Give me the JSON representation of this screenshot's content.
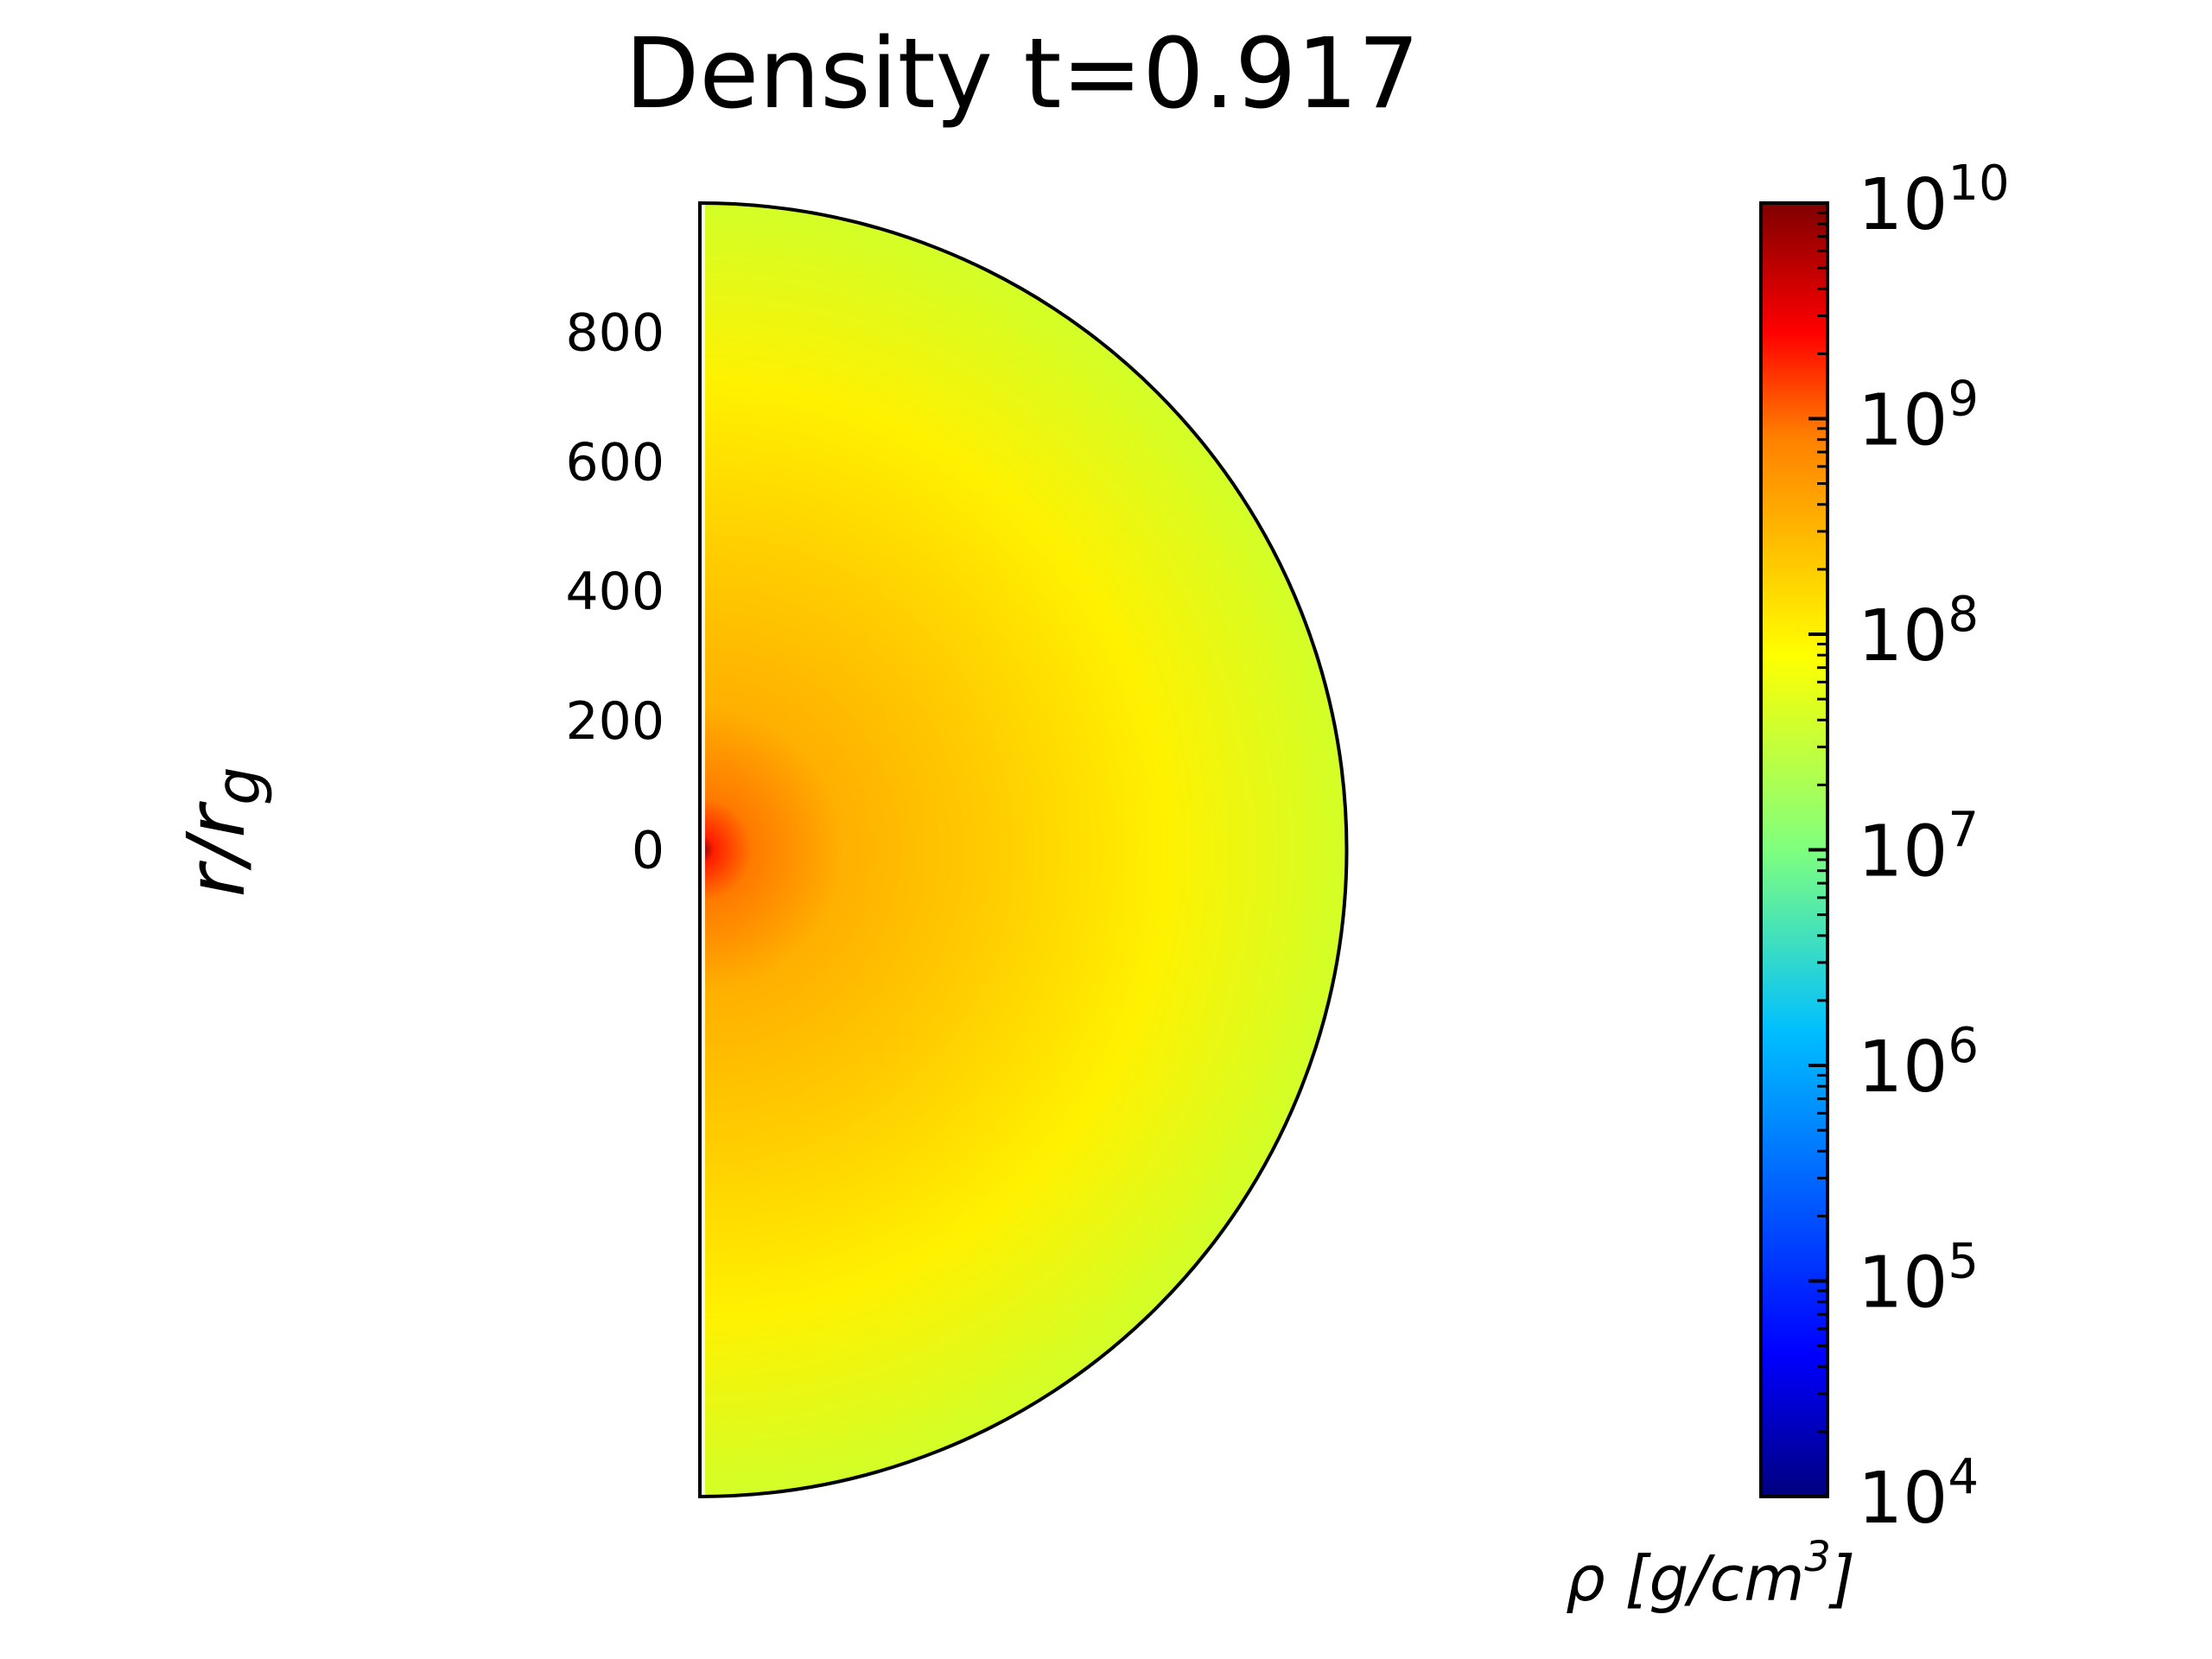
{
  "chart_data": {
    "type": "heatmap",
    "title": "Density t=0.917",
    "ylabel": {
      "main": "r/r",
      "sub": "g"
    },
    "yticks": [
      0,
      200,
      400,
      600,
      800
    ],
    "yrange": [
      -1000,
      1000
    ],
    "xrange": [
      0,
      1000
    ],
    "domain_shape": "half-disk",
    "colormap": "jet",
    "colorbar": {
      "scale": "log",
      "range": [
        10000,
        10000000000
      ],
      "ticks": [
        {
          "base": "10",
          "exp": "4",
          "value": 10000
        },
        {
          "base": "10",
          "exp": "5",
          "value": 100000
        },
        {
          "base": "10",
          "exp": "6",
          "value": 1000000
        },
        {
          "base": "10",
          "exp": "7",
          "value": 10000000
        },
        {
          "base": "10",
          "exp": "8",
          "value": 100000000
        },
        {
          "base": "10",
          "exp": "9",
          "value": 1000000000
        },
        {
          "base": "10",
          "exp": "10",
          "value": 10000000000
        }
      ],
      "label": {
        "before": "ρ [g/cm",
        "sup": "3",
        "after": "]"
      }
    },
    "field": {
      "center_value": 10000000000,
      "near_center_value": 600000000,
      "mid_value": 180000000,
      "outer_value": 50000000,
      "colors": {
        "center": "#6e0000",
        "inner": "#ff3c00",
        "mid": "#ffc000",
        "mid2": "#fff100",
        "outer": "#d2ff28"
      }
    }
  }
}
